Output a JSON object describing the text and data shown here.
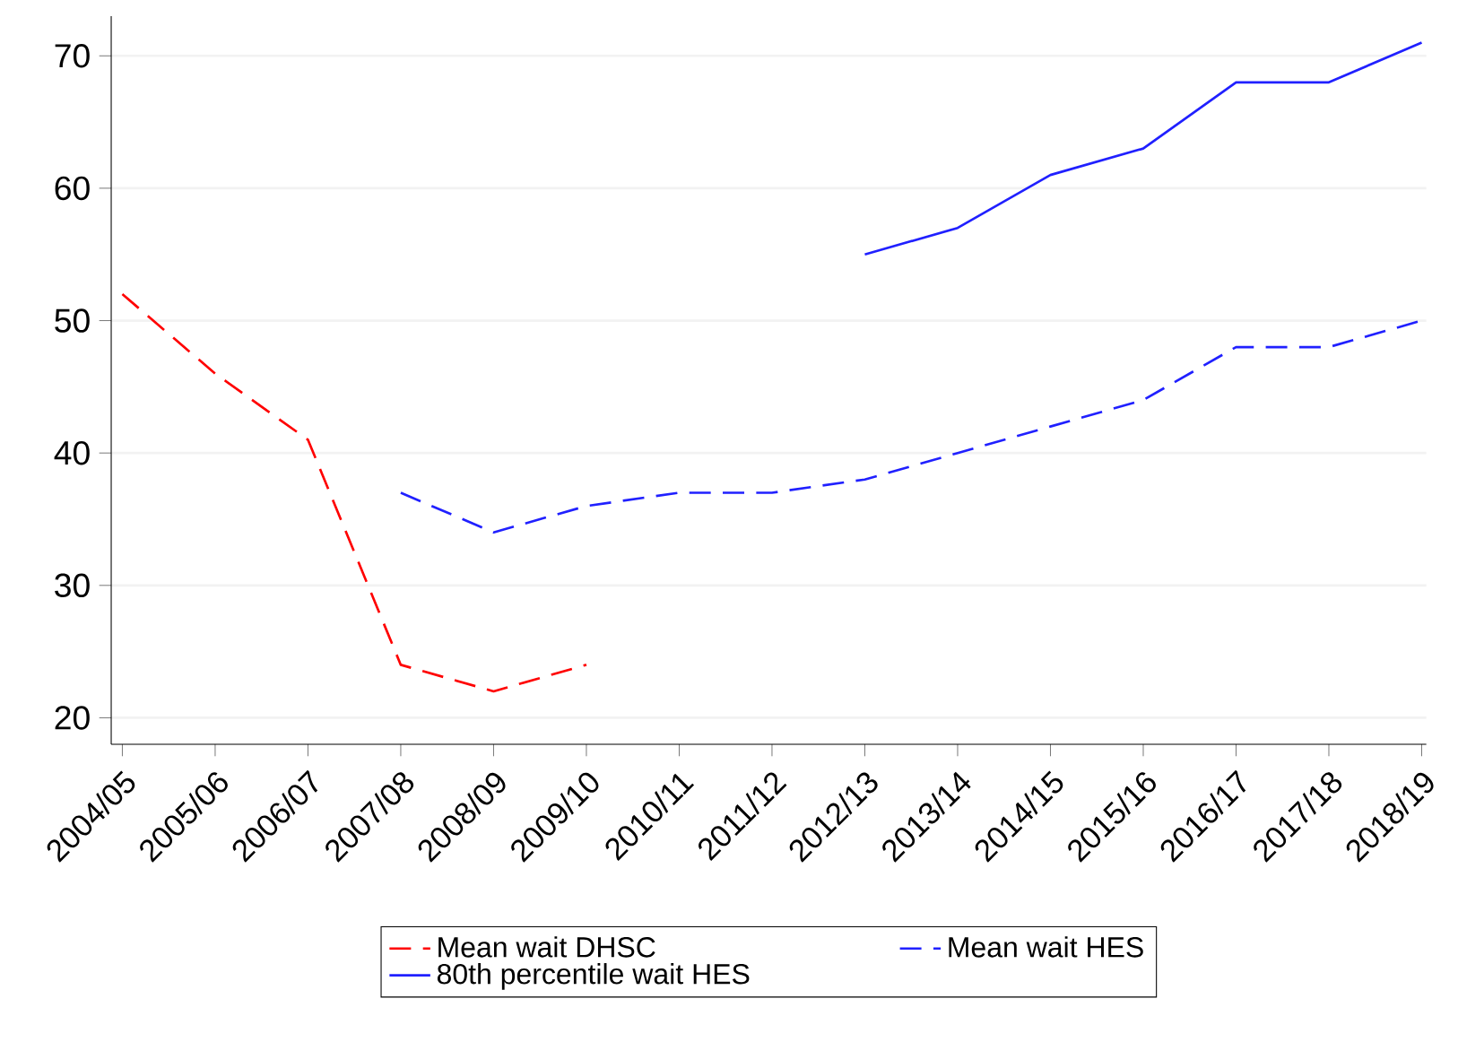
{
  "chart_data": {
    "type": "line",
    "categories": [
      "2004/05",
      "2005/06",
      "2006/07",
      "2007/08",
      "2008/09",
      "2009/10",
      "2010/11",
      "2011/12",
      "2012/13",
      "2013/14",
      "2014/15",
      "2015/16",
      "2016/17",
      "2017/18",
      "2018/19"
    ],
    "series": [
      {
        "name": "Mean wait DHSC",
        "color": "#ff0000",
        "line_style": "dashed",
        "values": [
          52,
          46,
          41,
          24,
          22,
          24,
          null,
          null,
          null,
          null,
          null,
          null,
          null,
          null,
          null
        ]
      },
      {
        "name": "Mean wait HES",
        "color": "#2020ff",
        "line_style": "dashed",
        "values": [
          null,
          null,
          null,
          37,
          34,
          36,
          37,
          37,
          38,
          40,
          42,
          44,
          48,
          48,
          50
        ]
      },
      {
        "name": "80th percentile wait HES",
        "color": "#2020ff",
        "line_style": "solid",
        "values": [
          null,
          null,
          null,
          null,
          null,
          null,
          null,
          null,
          55,
          57,
          61,
          63,
          68,
          68,
          71
        ]
      }
    ],
    "ylim": [
      18,
      73
    ],
    "yticks": [
      20,
      30,
      40,
      50,
      60,
      70
    ],
    "grid": "y",
    "legend": "bottom",
    "marker": "none"
  }
}
